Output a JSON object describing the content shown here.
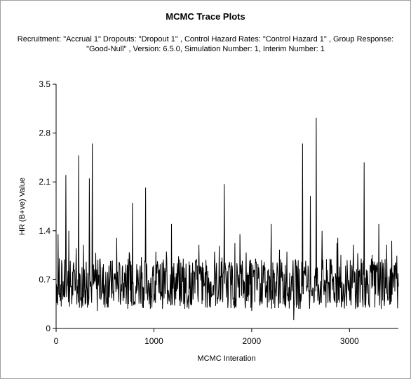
{
  "title": "MCMC Trace Plots",
  "subtitle_line1": "Recruitment: \"Accrual 1\" Dropouts: \"Dropout 1\" , Control Hazard Rates: \"Control Hazard 1\" , Group Response:",
  "subtitle_line2": "\"Good-Null\" , Version: 6.5.0, Simulation Number: 1, Interim Number: 1",
  "chart_data": {
    "type": "line",
    "title": "MCMC Trace Plots",
    "xlabel": "MCMC Interation",
    "ylabel": "HR (B+ve) Value",
    "xlim": [
      0,
      3500
    ],
    "ylim": [
      0,
      3.5
    ],
    "xticks": [
      0,
      1000,
      2000,
      3000
    ],
    "yticks": [
      0,
      0.7,
      1.4,
      2.1,
      2.8,
      3.5
    ],
    "xtick_labels": [
      "0",
      "1000",
      "2000",
      "3000"
    ],
    "ytick_labels": [
      "0",
      "0.7",
      "1.4",
      "2.1",
      "2.8",
      "3.5"
    ],
    "grid": false,
    "line_color": "#000000",
    "series": [
      {
        "x": [
          0,
          20,
          40,
          60,
          80,
          100,
          110,
          130,
          160,
          190,
          220,
          230,
          250,
          280,
          300,
          320,
          340,
          360,
          370,
          390,
          420,
          450,
          480,
          500,
          540,
          580,
          620,
          660,
          700,
          740,
          780,
          820,
          860,
          900,
          915,
          940,
          980,
          1020,
          1060,
          1100,
          1140,
          1180,
          1220,
          1260,
          1300,
          1340,
          1380,
          1420,
          1460,
          1500,
          1540,
          1580,
          1620,
          1660,
          1700,
          1720,
          1760,
          1800,
          1840,
          1880,
          1920,
          1960,
          2000,
          2040,
          2080,
          2120,
          2160,
          2200,
          2240,
          2280,
          2320,
          2360,
          2400,
          2430,
          2460,
          2500,
          2520,
          2560,
          2600,
          2640,
          2660,
          2680,
          2720,
          2760,
          2800,
          2840,
          2880,
          2920,
          2960,
          3000,
          3040,
          3080,
          3120,
          3150,
          3180,
          3220,
          3260,
          3300,
          3340,
          3380,
          3420,
          3460,
          3500
        ],
        "y": [
          0.6,
          1.35,
          0.5,
          0.9,
          0.45,
          2.2,
          0.6,
          1.4,
          0.35,
          0.8,
          0.5,
          2.48,
          0.4,
          1.2,
          0.55,
          0.3,
          2.15,
          0.5,
          2.65,
          0.7,
          0.25,
          1.0,
          0.5,
          0.3,
          0.9,
          0.5,
          1.3,
          0.4,
          0.8,
          0.35,
          1.8,
          0.5,
          0.9,
          0.4,
          2.02,
          0.6,
          0.3,
          1.1,
          0.5,
          0.9,
          0.35,
          1.5,
          0.6,
          0.4,
          1.0,
          0.3,
          0.8,
          0.5,
          1.2,
          0.4,
          0.9,
          0.3,
          1.1,
          0.5,
          0.6,
          2.07,
          0.4,
          0.9,
          0.3,
          1.35,
          0.5,
          0.8,
          0.25,
          1.0,
          0.4,
          0.9,
          0.3,
          1.5,
          0.5,
          0.7,
          0.35,
          1.1,
          0.4,
          0.12,
          0.9,
          0.5,
          2.65,
          0.6,
          1.9,
          0.4,
          3.02,
          0.5,
          1.4,
          0.3,
          1.0,
          0.45,
          1.3,
          0.35,
          0.9,
          0.5,
          1.2,
          0.3,
          1.0,
          2.38,
          0.5,
          0.8,
          0.3,
          1.5,
          0.4,
          1.2,
          0.35,
          0.9,
          0.6
        ]
      }
    ]
  }
}
